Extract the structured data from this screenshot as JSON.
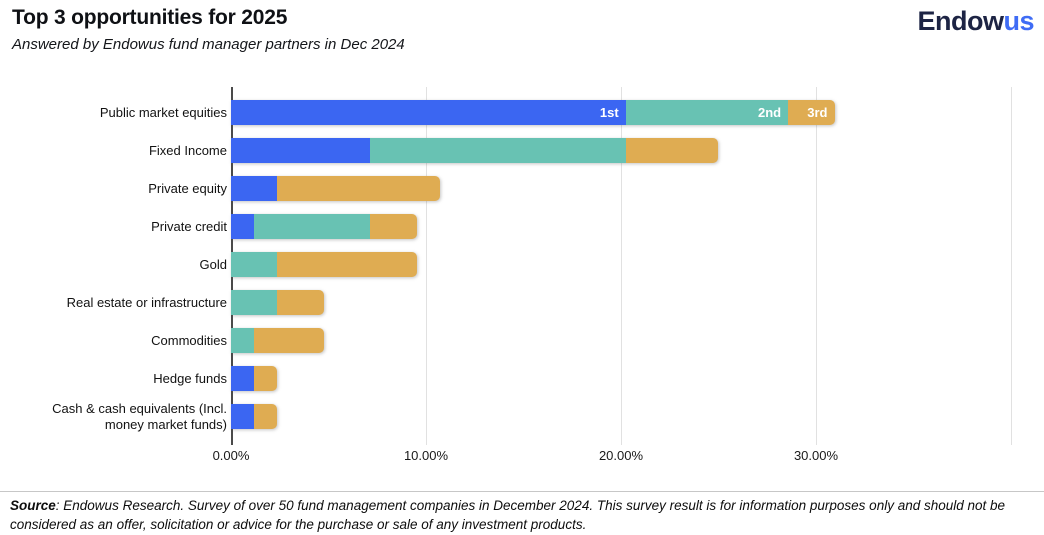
{
  "header": {
    "title": "Top 3 opportunities for 2025",
    "subtitle": "Answered by Endowus fund manager partners in Dec 2024"
  },
  "logo": {
    "text_primary": "Endow",
    "text_accent": "us",
    "color_primary": "#1d2444",
    "color_accent": "#3f6cf5"
  },
  "chart_data": {
    "type": "bar",
    "orientation": "horizontal",
    "stacked": true,
    "title": "Top 3 opportunities for 2025",
    "subtitle": "Answered by Endowus fund manager partners in Dec 2024",
    "xlabel": "",
    "ylabel": "",
    "xlim": [
      0,
      40
    ],
    "grid": true,
    "x_tick_values": [
      0,
      10,
      20,
      30
    ],
    "x_tick_labels": [
      "0.00%",
      "10.00%",
      "20.00%",
      "30.00%"
    ],
    "right_boundary_gridline_value": 40,
    "categories": [
      "Public market equities",
      "Fixed Income",
      "Private equity",
      "Private credit",
      "Gold",
      "Real estate or infrastructure",
      "Commodities",
      "Hedge funds",
      "Cash & cash equivalents (Incl. money market funds)"
    ],
    "series": [
      {
        "name": "1st",
        "color": "#3b66f2",
        "values": [
          20.24,
          7.14,
          2.38,
          1.19,
          0,
          0,
          0,
          1.19,
          1.19
        ]
      },
      {
        "name": "2nd",
        "color": "#68c2b3",
        "values": [
          8.33,
          13.1,
          0,
          5.95,
          2.38,
          2.38,
          1.19,
          0,
          0
        ]
      },
      {
        "name": "3rd",
        "color": "#dfac52",
        "values": [
          2.38,
          4.76,
          8.33,
          2.38,
          7.14,
          2.38,
          3.57,
          1.19,
          1.19
        ]
      }
    ],
    "series_labels_shown_on_row": 0,
    "totals_percent": [
      30.95,
      25.0,
      10.71,
      9.52,
      9.52,
      4.76,
      4.76,
      2.38,
      2.38
    ]
  },
  "footer": {
    "source_label": "Source",
    "source_text": ": Endowus Research. Survey of over 50 fund management companies in December 2024. This survey result is for information purposes only and should not be considered as an offer, solicitation or advice for the purchase or sale of any investment products."
  }
}
